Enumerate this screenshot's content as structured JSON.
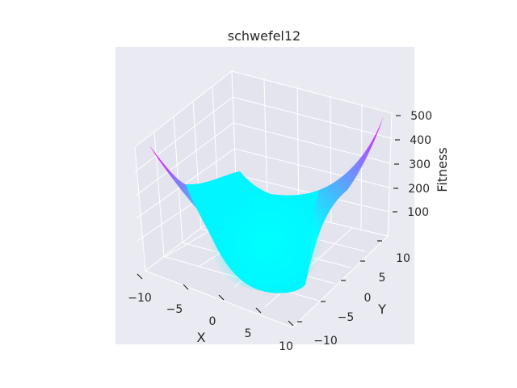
{
  "chart_data": {
    "type": "surface",
    "title": "schwefel12",
    "xlabel": "X",
    "ylabel": "Y",
    "zlabel": "Fitness",
    "xlim": [
      -10,
      10
    ],
    "ylim": [
      -10,
      10
    ],
    "zlim": [
      0,
      500
    ],
    "x_ticks": [
      "−10",
      "−5",
      "0",
      "5",
      "10"
    ],
    "y_ticks": [
      "−10",
      "−5",
      "0",
      "5",
      "10"
    ],
    "z_ticks": [
      "100",
      "200",
      "300",
      "400",
      "500"
    ],
    "colormap": "cool",
    "colormap_low": "#00ffff",
    "colormap_high": "#ff00ff",
    "pane_color": "#eaeaf2",
    "grid": true,
    "surface_points": [
      {
        "x": -10,
        "y": -10,
        "z": 500
      },
      {
        "x": 10,
        "y": 10,
        "z": 500
      },
      {
        "x": -10,
        "y": 10,
        "z": 100
      },
      {
        "x": 10,
        "y": -10,
        "z": 100
      },
      {
        "x": 0,
        "y": 0,
        "z": 0
      }
    ]
  }
}
